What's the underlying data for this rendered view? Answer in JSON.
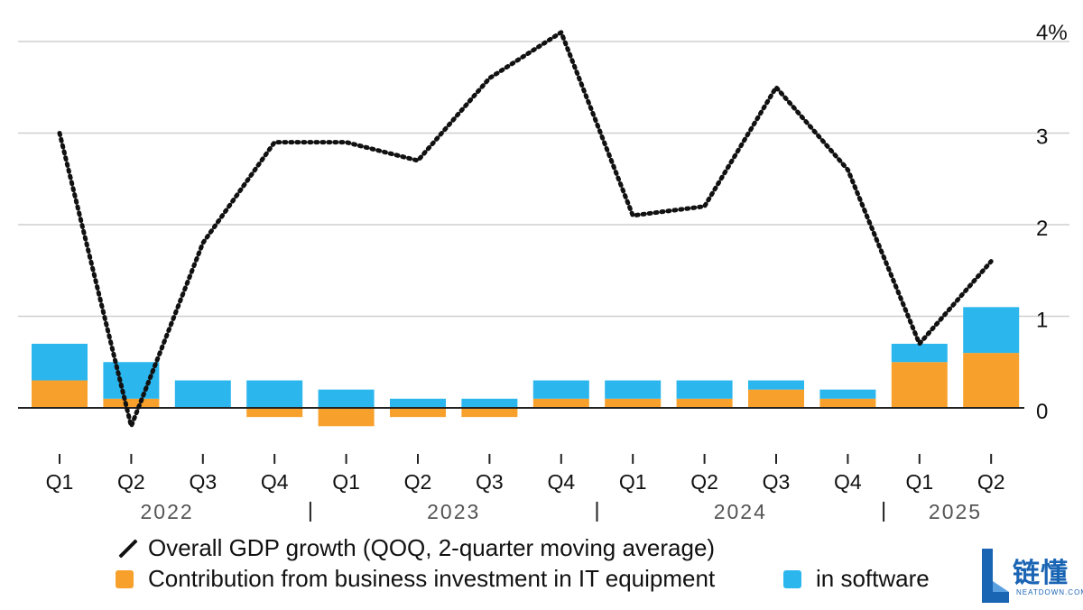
{
  "chart_data": {
    "type": "bar+line",
    "categories": [
      "Q1",
      "Q2",
      "Q3",
      "Q4",
      "Q1",
      "Q2",
      "Q3",
      "Q4",
      "Q1",
      "Q2",
      "Q3",
      "Q4",
      "Q1",
      "Q2"
    ],
    "years": [
      {
        "label": "2022",
        "start": 0,
        "end": 3
      },
      {
        "label": "2023",
        "start": 4,
        "end": 7
      },
      {
        "label": "2024",
        "start": 8,
        "end": 11
      },
      {
        "label": "2025",
        "start": 12,
        "end": 13
      }
    ],
    "series": [
      {
        "name": "Contribution from business investment in IT equipment",
        "type": "bar",
        "color": "#F7A12C",
        "values": [
          0.3,
          0.1,
          0.0,
          -0.1,
          -0.2,
          -0.1,
          -0.1,
          0.1,
          0.1,
          0.1,
          0.2,
          0.1,
          0.5,
          0.6
        ]
      },
      {
        "name": "in software",
        "type": "bar",
        "color": "#2BB6EE",
        "values": [
          0.4,
          0.4,
          0.3,
          0.3,
          0.2,
          0.1,
          0.1,
          0.2,
          0.2,
          0.2,
          0.1,
          0.1,
          0.2,
          0.5
        ]
      },
      {
        "name": "Overall GDP growth (QOQ, 2-quarter moving average)",
        "type": "line",
        "style": "dotted",
        "color": "#111111",
        "values": [
          3.0,
          -0.2,
          1.8,
          2.9,
          2.9,
          2.7,
          3.6,
          4.1,
          2.1,
          2.2,
          3.5,
          2.6,
          0.7,
          1.6
        ]
      }
    ],
    "yticks": [
      "0",
      "1",
      "2",
      "3",
      "4%"
    ],
    "ytick_values": [
      0,
      1,
      2,
      3,
      4
    ],
    "ylim": [
      -0.5,
      4.3
    ],
    "grid": true,
    "legend_position": "bottom"
  },
  "legend": {
    "gdp": "Overall GDP growth (QOQ, 2-quarter moving average)",
    "it_equipment": "Contribution from business investment in IT equipment",
    "software": "in software"
  },
  "watermark": {
    "cn": "链懂",
    "en": "NEATDOWN.COM"
  }
}
